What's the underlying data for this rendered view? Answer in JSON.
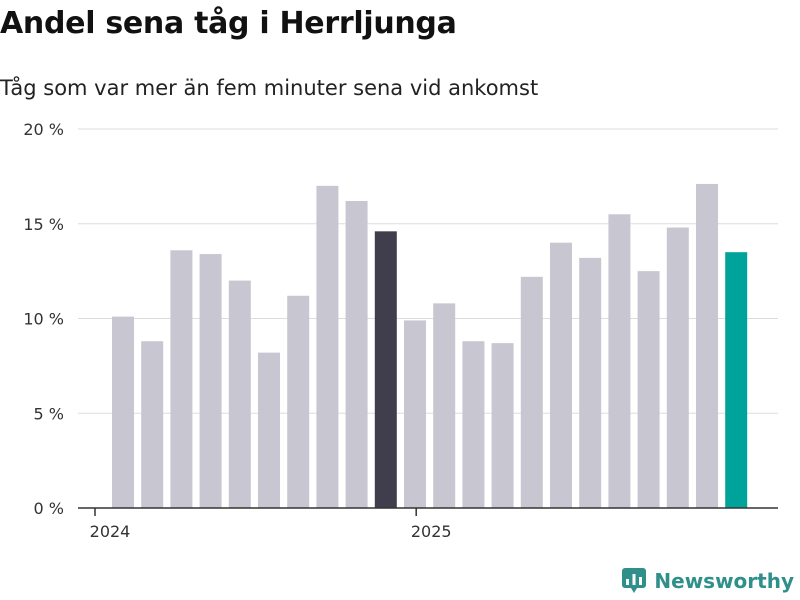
{
  "page": {
    "title": "Andel sena tåg i Herrljunga",
    "subtitle": "Tåg som var mer än fem minuter sena vid ankomst",
    "brand": "Newsworthy"
  },
  "colors": {
    "default_bar": "#c8c7d1",
    "highlight_dark": "#403e4d",
    "highlight_latest": "#00a39a",
    "grid": "#dddddd",
    "axis": "#333333",
    "brand": "#2f8f8a"
  },
  "chart_data": {
    "type": "bar",
    "title": "Andel sena tåg i Herrljunga",
    "subtitle": "Tåg som var mer än fem minuter sena vid ankomst",
    "xlabel": "",
    "ylabel": "",
    "ylim": [
      0,
      20
    ],
    "yticks": [
      0,
      5,
      10,
      15,
      20
    ],
    "ytick_labels": [
      "0 %",
      "5 %",
      "10 %",
      "15 %",
      "20 %"
    ],
    "xtick_labels": [
      {
        "label": "2024",
        "at_index": 0
      },
      {
        "label": "2025",
        "at_index": 11
      }
    ],
    "grid": true,
    "categories": [
      "2024-01",
      "2024-02",
      "2024-03",
      "2024-04",
      "2024-05",
      "2024-06",
      "2024-07",
      "2024-08",
      "2024-09",
      "2024-10",
      "2024-11",
      "2024-12",
      "2025-01",
      "2025-02",
      "2025-03",
      "2025-04",
      "2025-05",
      "2025-06",
      "2025-07",
      "2025-08",
      "2025-09",
      "2025-10"
    ],
    "values": [
      10.1,
      8.8,
      13.6,
      13.4,
      12.0,
      8.2,
      11.2,
      17.0,
      16.2,
      14.6,
      9.9,
      10.8,
      8.8,
      8.7,
      12.2,
      14.0,
      13.2,
      15.5,
      12.5,
      14.8,
      17.1,
      13.5
    ],
    "highlight": {
      "9": "highlight_dark",
      "21": "highlight_latest"
    }
  }
}
